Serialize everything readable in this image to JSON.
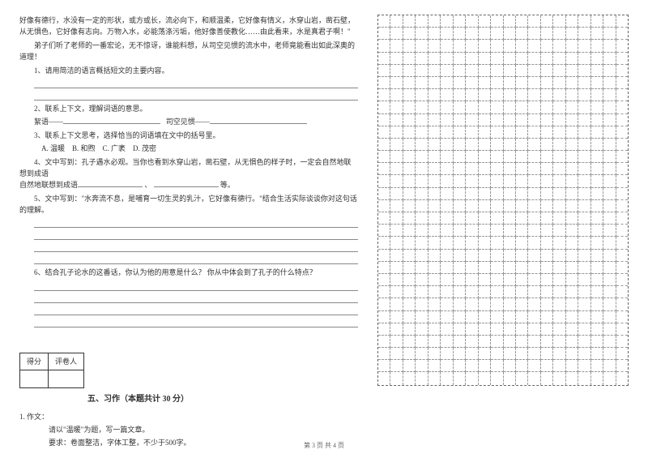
{
  "passage": {
    "p1": "好像有德行，水没有一定的形状，或方或长，流必向下，和顺温柔，它好像有情义，水穿山岩，凿石壁，从无惧色，它好像有志向。万物入水，必能荡涤污垢，他好像善使教化……由此看来，水是真君子啊！\"",
    "p2": "弟子们听了老师的一番宏论，无不惊讶，谁能料想，从司空见惯的流水中，老师竟能看出如此深奥的道理！"
  },
  "questions": {
    "q1": "1、请用简洁的语言概括短文的主要内容。",
    "q2": "2、联系上下文，理解词语的意思。",
    "q2a_label": "絮语——",
    "q2b_label": "司空见惯——",
    "q3": "3、联系上下文思考，选择恰当的词语填在文中的括号里。",
    "q3_opts": {
      "a": "A. 温暖",
      "b": "B. 和煦",
      "c": "C. 广袤",
      "d": "D. 茂密"
    },
    "q4": "4、文中写到：孔子遇水必观。当你也看到水穿山岩，凿石壁，从无惧色的样子时，一定会自然地联想到成语",
    "q4_tail": "、",
    "q4_tail2": "等。",
    "q5": "5、文中写到：\"水奔流不息，是哺育一切生灵的乳汁，它好像有德行。\"结合生活实际谈谈你对这句话的理解。",
    "q6": "6、结合孔子论水的这番话，你认为他的用意是什么？ 你从中体会到了孔子的什么特点？"
  },
  "score_table": {
    "score": "得分",
    "grader": "评卷人"
  },
  "section5_title": "五、习作（本题共计 30 分）",
  "composition": {
    "label": "1. 作文：",
    "line1": "请以\"温暖\"为题，写一篇文章。",
    "line2": "要求：卷面整洁，字体工整，不少于500字。"
  },
  "grid": {
    "rows": 30,
    "cols": 20
  },
  "footer": "第 3 页  共 4 页"
}
